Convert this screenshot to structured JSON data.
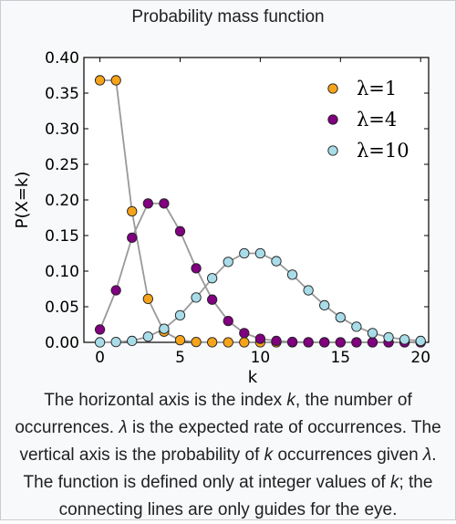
{
  "title": "Probability mass function",
  "caption": {
    "p1_a": "The horizontal axis is the index ",
    "p1_k": "k",
    "p1_b": ", the number of occurrences. ",
    "p1_lambda": "λ",
    "p1_c": " is the expected rate of occurrences. The vertical axis is the probability of ",
    "p1_k2": "k",
    "p1_d": " occurrences given ",
    "p1_lambda2": "λ",
    "p1_e": ". The function is defined only at integer values of ",
    "p1_k3": "k",
    "p1_f": "; the connecting lines are only guides for the eye."
  },
  "chart_data": {
    "type": "line",
    "title": "Probability mass function",
    "xlabel": "k",
    "ylabel": "P(X=k)",
    "xlim": [
      -1,
      20.5
    ],
    "ylim": [
      0,
      0.4
    ],
    "xticks": [
      0,
      5,
      10,
      15,
      20
    ],
    "yticks": [
      0.0,
      0.05,
      0.1,
      0.15,
      0.2,
      0.25,
      0.3,
      0.35,
      0.4
    ],
    "ytick_labels": [
      "0.00",
      "0.05",
      "0.10",
      "0.15",
      "0.20",
      "0.25",
      "0.30",
      "0.35",
      "0.40"
    ],
    "grid": false,
    "legend_position": "top-right",
    "line_color": "#999999",
    "series": [
      {
        "name": "λ=1",
        "color": "#f5a31a",
        "x": [
          0,
          1,
          2,
          3,
          4,
          5,
          6,
          7,
          8,
          9,
          10,
          11,
          12,
          13,
          14,
          15,
          16,
          17,
          18,
          19,
          20
        ],
        "values": [
          0.368,
          0.368,
          0.184,
          0.061,
          0.015,
          0.003,
          0.0005,
          0.0001,
          0,
          0,
          0,
          0,
          0,
          0,
          0,
          0,
          0,
          0,
          0,
          0,
          0
        ]
      },
      {
        "name": "λ=4",
        "color": "#800080",
        "x": [
          0,
          1,
          2,
          3,
          4,
          5,
          6,
          7,
          8,
          9,
          10,
          11,
          12,
          13,
          14,
          15,
          16,
          17,
          18,
          19,
          20
        ],
        "values": [
          0.018,
          0.073,
          0.147,
          0.195,
          0.195,
          0.156,
          0.104,
          0.06,
          0.03,
          0.013,
          0.005,
          0.002,
          0.0006,
          0.0002,
          0.0001,
          0,
          0,
          0,
          0,
          0,
          0
        ]
      },
      {
        "name": "λ=10",
        "color": "#a8dce8",
        "x": [
          0,
          1,
          2,
          3,
          4,
          5,
          6,
          7,
          8,
          9,
          10,
          11,
          12,
          13,
          14,
          15,
          16,
          17,
          18,
          19,
          20
        ],
        "values": [
          5e-05,
          0.0005,
          0.002,
          0.008,
          0.019,
          0.038,
          0.063,
          0.09,
          0.113,
          0.125,
          0.125,
          0.114,
          0.095,
          0.073,
          0.052,
          0.035,
          0.022,
          0.013,
          0.007,
          0.004,
          0.002
        ]
      }
    ]
  }
}
